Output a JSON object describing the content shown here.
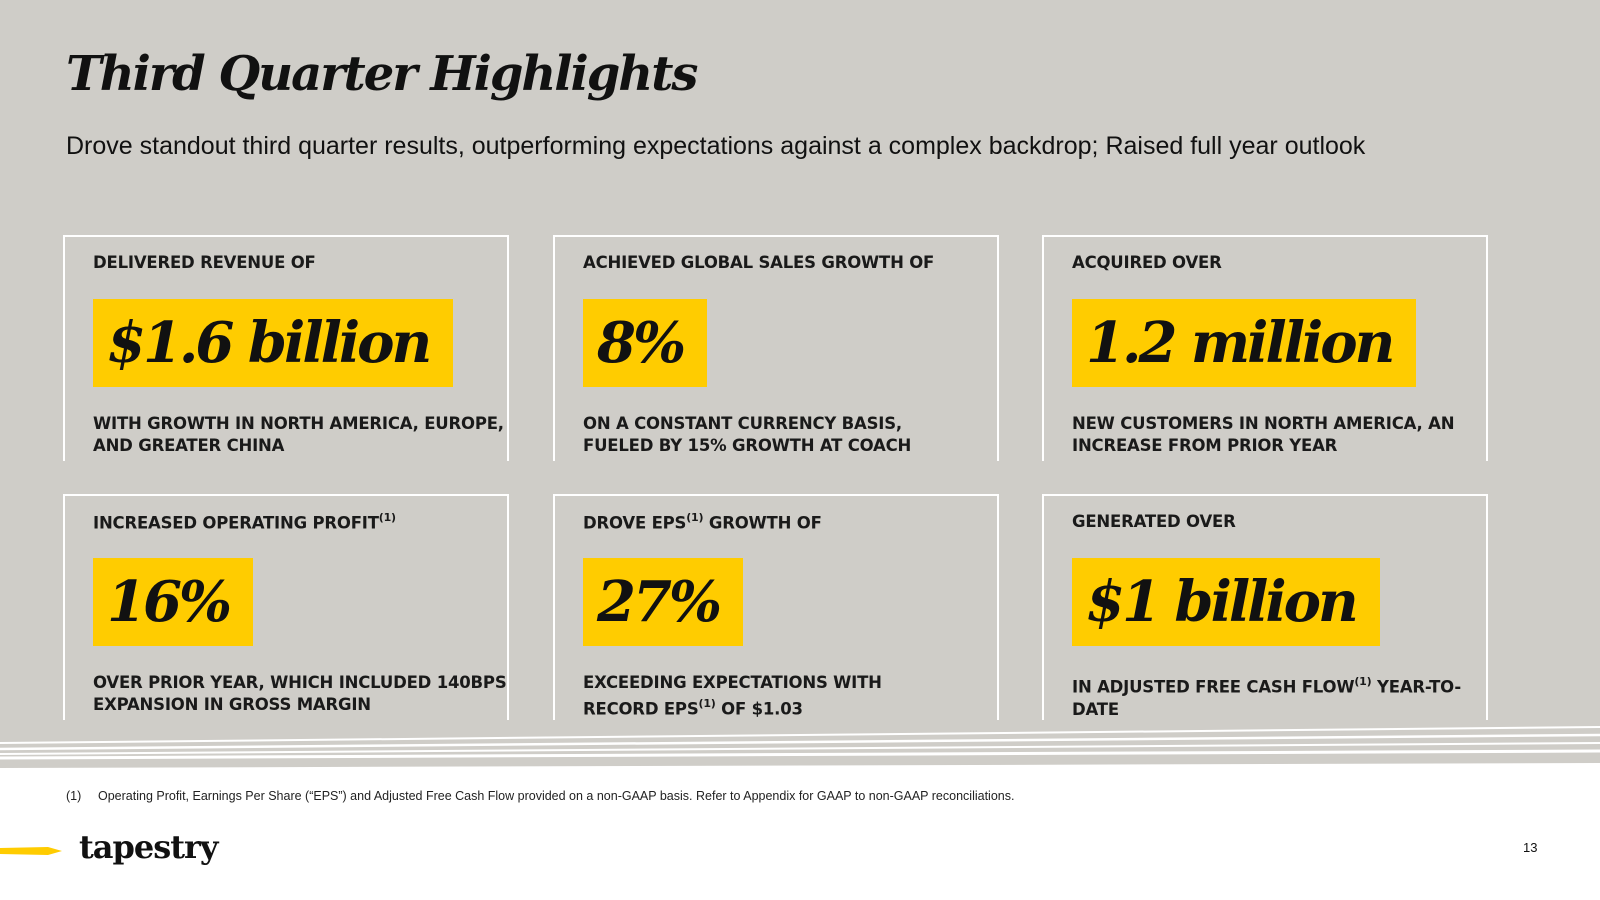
{
  "slide": {
    "title": "Third Quarter Highlights",
    "subtitle": "Drove standout third quarter results, outperforming expectations against a complex backdrop; Raised full year outlook"
  },
  "cards": [
    {
      "label": "DELIVERED REVENUE OF",
      "value": "$1.6 billion",
      "desc": "WITH GROWTH IN NORTH AMERICA, EUROPE,\nAND GREATER CHINA"
    },
    {
      "label": "ACHIEVED GLOBAL SALES GROWTH OF",
      "value": "8%",
      "desc": "ON A CONSTANT CURRENCY BASIS,\nFUELED BY 15% GROWTH AT COACH"
    },
    {
      "label": "ACQUIRED OVER",
      "value": "1.2 million",
      "desc": "NEW CUSTOMERS IN NORTH AMERICA, AN\nINCREASE FROM PRIOR YEAR"
    },
    {
      "label": "INCREASED OPERATING PROFIT",
      "label_sup": "(1)",
      "value": "16%",
      "desc": "OVER PRIOR YEAR, WHICH INCLUDED 140BPS\nEXPANSION IN GROSS MARGIN"
    },
    {
      "label_pre": "DROVE EPS",
      "label_sup": "(1)",
      "label_post": " GROWTH OF",
      "value": "27%",
      "desc_line1": "EXCEEDING EXPECTATIONS WITH",
      "desc_line2_pre": "RECORD EPS",
      "desc_line2_sup": "(1)",
      "desc_line2_post": " OF $1.03"
    },
    {
      "label": "GENERATED OVER",
      "value": "$1 billion",
      "desc_pre": "IN ADJUSTED FREE CASH FLOW",
      "desc_sup": "(1)",
      "desc_post": " YEAR-TO-DATE"
    }
  ],
  "footnote": {
    "number": "(1)",
    "text": "Operating Profit, Earnings Per Share (“EPS”) and Adjusted Free Cash Flow provided on a non-GAAP basis. Refer to Appendix for GAAP to non-GAAP reconciliations."
  },
  "brand": {
    "name": "tapestry",
    "accent_color": "#ffcc00",
    "background_color": "#cfcdc8"
  },
  "page_number": "13"
}
